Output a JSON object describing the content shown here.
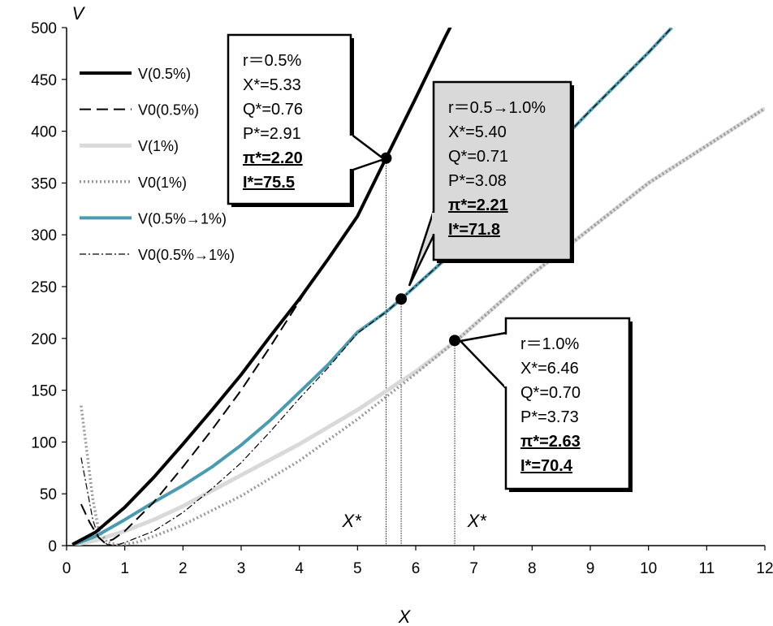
{
  "chart_data": {
    "type": "line",
    "xlabel": "X",
    "ylabel": "V",
    "xlim": [
      0,
      12
    ],
    "ylim": [
      0,
      500
    ],
    "xticks": [
      "0",
      "1",
      "2",
      "3",
      "4",
      "5",
      "6",
      "7",
      "8",
      "9",
      "10",
      "11",
      "12"
    ],
    "yticks": [
      "0",
      "50",
      "100",
      "150",
      "200",
      "250",
      "300",
      "350",
      "400",
      "450",
      "500"
    ],
    "grid": false,
    "legend_position": "top-left",
    "series": [
      {
        "name": "V(0.5%)",
        "style": "solid",
        "color": "#000000",
        "points": [
          [
            0.1,
            1
          ],
          [
            0.5,
            13
          ],
          [
            1,
            37
          ],
          [
            1.5,
            66
          ],
          [
            2,
            98
          ],
          [
            2.5,
            131
          ],
          [
            3,
            165
          ],
          [
            3.5,
            202
          ],
          [
            4,
            238
          ],
          [
            4.5,
            277
          ],
          [
            5,
            318
          ],
          [
            5.49,
            374
          ],
          [
            6,
            432
          ],
          [
            6.5,
            490
          ],
          [
            6.95,
            540
          ]
        ]
      },
      {
        "name": "V0(0.5%)",
        "style": "dashed",
        "color": "#000000",
        "points": [
          [
            0.25,
            40
          ],
          [
            0.4,
            22
          ],
          [
            0.55,
            8
          ],
          [
            0.65,
            3
          ],
          [
            0.8,
            6
          ],
          [
            1,
            14
          ],
          [
            1.5,
            42
          ],
          [
            2,
            76
          ],
          [
            2.5,
            112
          ],
          [
            3,
            150
          ],
          [
            3.5,
            192
          ],
          [
            4,
            236
          ],
          [
            4.3,
            262
          ]
        ]
      },
      {
        "name": "V(1%)",
        "style": "solid",
        "color": "#d9d9d9",
        "points": [
          [
            0.1,
            0.5
          ],
          [
            0.5,
            5
          ],
          [
            1,
            14
          ],
          [
            1.5,
            25
          ],
          [
            2,
            38
          ],
          [
            3,
            68
          ],
          [
            4,
            98
          ],
          [
            5,
            131
          ],
          [
            6,
            168
          ],
          [
            6.7,
            198
          ],
          [
            8,
            262
          ],
          [
            10,
            350
          ],
          [
            12,
            422
          ]
        ]
      },
      {
        "name": "V0(1%)",
        "style": "dotted",
        "color": "#999999",
        "points": [
          [
            0.25,
            135
          ],
          [
            0.35,
            90
          ],
          [
            0.45,
            45
          ],
          [
            0.55,
            15
          ],
          [
            0.7,
            3
          ],
          [
            0.9,
            0.5
          ],
          [
            1.2,
            3
          ],
          [
            1.5,
            9
          ],
          [
            2,
            20
          ],
          [
            3,
            48
          ],
          [
            4,
            82
          ],
          [
            5,
            122
          ],
          [
            6,
            166
          ],
          [
            6.7,
            198
          ],
          [
            8,
            262
          ],
          [
            10,
            350
          ],
          [
            12,
            422
          ]
        ]
      },
      {
        "name": "V(0.5%→1%)",
        "style": "solid",
        "color": "#4a9bb0",
        "points": [
          [
            0.1,
            0.5
          ],
          [
            0.5,
            9
          ],
          [
            1,
            25
          ],
          [
            1.5,
            42
          ],
          [
            2,
            58
          ],
          [
            2.5,
            76
          ],
          [
            3,
            97
          ],
          [
            3.5,
            121
          ],
          [
            4,
            148
          ],
          [
            4.5,
            175
          ],
          [
            5,
            206
          ],
          [
            5.5,
            226
          ],
          [
            5.75,
            238
          ],
          [
            6.5,
            276
          ],
          [
            7,
            305
          ],
          [
            8,
            362
          ],
          [
            9,
            420
          ],
          [
            10,
            476
          ],
          [
            10.4,
            500
          ]
        ]
      },
      {
        "name": "V0(0.5%→1%)",
        "style": "dashdot",
        "color": "#000000",
        "points": [
          [
            0.25,
            85
          ],
          [
            0.35,
            55
          ],
          [
            0.45,
            25
          ],
          [
            0.55,
            8
          ],
          [
            0.7,
            1
          ],
          [
            0.85,
            0.5
          ],
          [
            1,
            3
          ],
          [
            1.5,
            14
          ],
          [
            2,
            32
          ],
          [
            2.5,
            55
          ],
          [
            3,
            80
          ],
          [
            3.5,
            110
          ],
          [
            4,
            142
          ],
          [
            4.5,
            172
          ],
          [
            5,
            205
          ],
          [
            5.5,
            226
          ],
          [
            5.75,
            238
          ],
          [
            6.5,
            276
          ],
          [
            7,
            305
          ],
          [
            8,
            362
          ],
          [
            9,
            420
          ],
          [
            10,
            476
          ],
          [
            10.4,
            500
          ]
        ]
      }
    ],
    "markers": [
      {
        "x": 5.49,
        "y": 374
      },
      {
        "x": 5.75,
        "y": 238
      },
      {
        "x": 6.67,
        "y": 198
      }
    ],
    "xstar_labels": [
      {
        "text": "X*",
        "x": 4.9,
        "y": 18
      },
      {
        "text": "X*",
        "x": 7.05,
        "y": 18
      }
    ],
    "annotations": [
      {
        "id": "r05",
        "lines": [
          "r＝0.5%",
          "X*=5.33",
          "Q*=0.76",
          "P*=2.91"
        ],
        "bold_lines": [
          "π*=2.20",
          "I*=75.5"
        ],
        "fill": "#ffffff"
      },
      {
        "id": "r05to10",
        "lines": [
          "r＝0.5→1.0%",
          "X*=5.40",
          "Q*=0.71",
          "P*=3.08"
        ],
        "bold_lines": [
          "π*=2.21",
          "I*=71.8"
        ],
        "fill": "#d9d9d9"
      },
      {
        "id": "r10",
        "lines": [
          "r＝1.0%",
          "X*=6.46",
          "Q*=0.70",
          "P*=3.73"
        ],
        "bold_lines": [
          "π*=2.63",
          "I*=70.4"
        ],
        "fill": "#ffffff"
      }
    ]
  }
}
